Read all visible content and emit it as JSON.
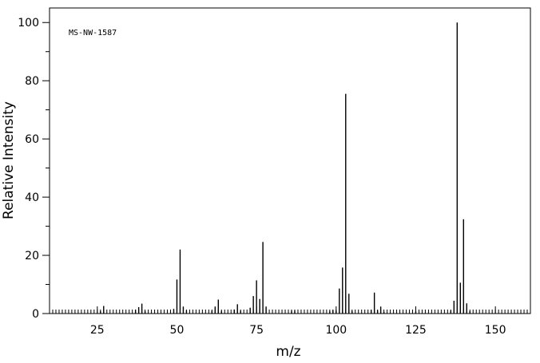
{
  "chart_data": {
    "type": "bar",
    "annotation": "MS-NW-1587",
    "xlabel": "m/z",
    "ylabel": "Relative Intensity",
    "xlim": [
      10,
      161
    ],
    "ylim": [
      0,
      105
    ],
    "x_ticks": [
      25,
      50,
      75,
      100,
      125,
      150
    ],
    "y_ticks": [
      0,
      20,
      40,
      60,
      80,
      100
    ],
    "peaks": [
      {
        "mz": 26,
        "intensity": 0.8
      },
      {
        "mz": 27,
        "intensity": 2.6
      },
      {
        "mz": 37,
        "intensity": 1.3
      },
      {
        "mz": 38,
        "intensity": 2.2
      },
      {
        "mz": 39,
        "intensity": 3.4
      },
      {
        "mz": 40,
        "intensity": 0.8
      },
      {
        "mz": 49,
        "intensity": 1.6
      },
      {
        "mz": 50,
        "intensity": 11.7
      },
      {
        "mz": 51,
        "intensity": 22.0
      },
      {
        "mz": 52,
        "intensity": 2.4
      },
      {
        "mz": 53,
        "intensity": 1.1
      },
      {
        "mz": 61,
        "intensity": 1.0
      },
      {
        "mz": 62,
        "intensity": 2.4
      },
      {
        "mz": 63,
        "intensity": 4.8
      },
      {
        "mz": 64,
        "intensity": 0.9
      },
      {
        "mz": 68,
        "intensity": 1.4
      },
      {
        "mz": 69,
        "intensity": 3.2
      },
      {
        "mz": 70,
        "intensity": 1.0
      },
      {
        "mz": 73,
        "intensity": 2.0
      },
      {
        "mz": 74,
        "intensity": 6.0
      },
      {
        "mz": 75,
        "intensity": 11.4
      },
      {
        "mz": 76,
        "intensity": 5.0
      },
      {
        "mz": 77,
        "intensity": 24.6
      },
      {
        "mz": 78,
        "intensity": 2.4
      },
      {
        "mz": 86,
        "intensity": 1.0
      },
      {
        "mz": 87,
        "intensity": 1.0
      },
      {
        "mz": 98,
        "intensity": 0.8
      },
      {
        "mz": 99,
        "intensity": 1.2
      },
      {
        "mz": 100,
        "intensity": 1.0
      },
      {
        "mz": 101,
        "intensity": 8.6
      },
      {
        "mz": 102,
        "intensity": 15.8
      },
      {
        "mz": 103,
        "intensity": 75.5
      },
      {
        "mz": 104,
        "intensity": 6.8
      },
      {
        "mz": 105,
        "intensity": 0.9
      },
      {
        "mz": 111,
        "intensity": 1.2
      },
      {
        "mz": 112,
        "intensity": 7.2
      },
      {
        "mz": 113,
        "intensity": 1.1
      },
      {
        "mz": 114,
        "intensity": 2.4
      },
      {
        "mz": 115,
        "intensity": 0.6
      },
      {
        "mz": 125,
        "intensity": 0.8
      },
      {
        "mz": 136,
        "intensity": 1.0
      },
      {
        "mz": 137,
        "intensity": 4.4
      },
      {
        "mz": 138,
        "intensity": 100.0
      },
      {
        "mz": 139,
        "intensity": 10.6
      },
      {
        "mz": 140,
        "intensity": 32.4
      },
      {
        "mz": 141,
        "intensity": 3.5
      },
      {
        "mz": 142,
        "intensity": 0.8
      }
    ]
  }
}
